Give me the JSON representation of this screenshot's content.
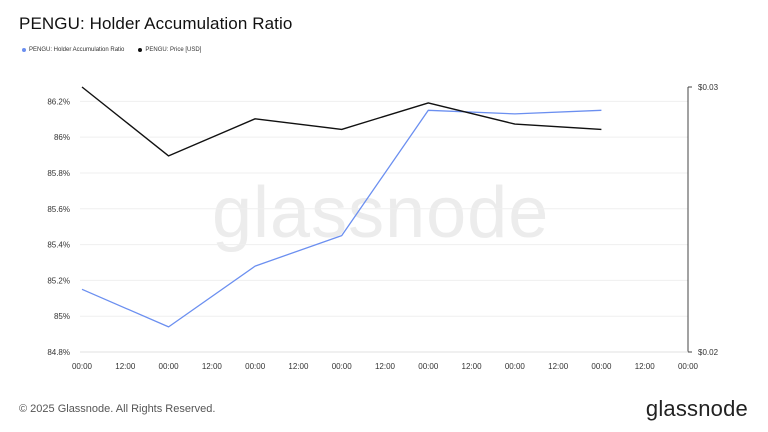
{
  "header": {
    "title": "PENGU: Holder Accumulation Ratio"
  },
  "legend": {
    "items": [
      {
        "label": "PENGU: Holder Accumulation Ratio",
        "color": "#6b8ff0"
      },
      {
        "label": "PENGU: Price [USD]",
        "color": "#111111"
      }
    ]
  },
  "watermark": "glassnode",
  "footer": {
    "copyright": "© 2025 Glassnode. All Rights Reserved.",
    "logo": "glassnode"
  },
  "colors": {
    "ratio_line": "#6b8ff0",
    "price_line": "#111111",
    "grid": "#efefef",
    "axis": "#444444"
  },
  "chart_data": {
    "type": "line",
    "x_labels": [
      "00:00",
      "12:00",
      "00:00",
      "12:00",
      "00:00",
      "12:00",
      "00:00",
      "12:00",
      "00:00",
      "12:00",
      "00:00",
      "12:00",
      "00:00",
      "12:00",
      "00:00"
    ],
    "left_axis": {
      "ticks": [
        "84.8%",
        "85%",
        "85.2%",
        "85.4%",
        "85.6%",
        "85.8%",
        "86%",
        "86.2%"
      ],
      "ylim": [
        84.8,
        86.28
      ]
    },
    "right_axis": {
      "ticks": [
        "$0.02",
        "$0.03"
      ],
      "ylim": [
        0.02,
        0.03
      ]
    },
    "series": [
      {
        "name": "PENGU: Holder Accumulation Ratio",
        "axis": "left",
        "x_index": [
          0,
          2,
          4,
          6,
          8,
          10,
          12
        ],
        "values": [
          85.15,
          84.94,
          85.28,
          85.45,
          86.15,
          86.13,
          86.15
        ]
      },
      {
        "name": "PENGU: Price [USD]",
        "axis": "right",
        "x_index": [
          0,
          2,
          4,
          6,
          8,
          10,
          12
        ],
        "values": [
          0.03,
          0.0274,
          0.0288,
          0.0284,
          0.0294,
          0.0286,
          0.0284
        ]
      }
    ],
    "grid": true,
    "legend_position": "top-left"
  }
}
